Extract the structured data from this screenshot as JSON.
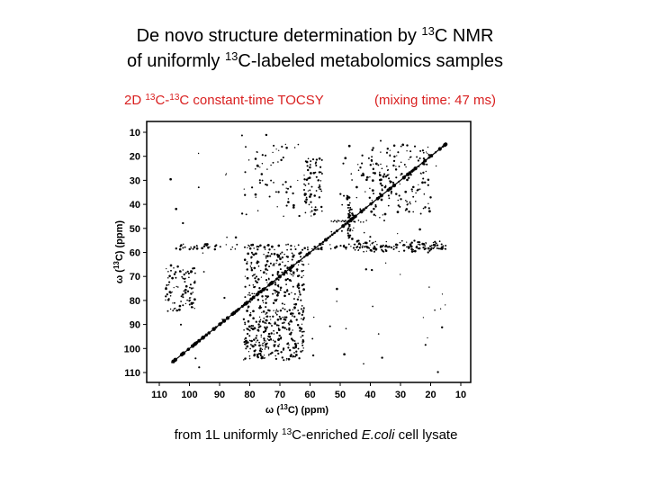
{
  "title": {
    "line1": [
      "De novo structure determination by ",
      "13",
      "C NMR"
    ],
    "line2": [
      "of uniformly ",
      "13",
      "C-labeled metabolomics samples"
    ]
  },
  "subtitle": {
    "experiment": [
      "2D ",
      "13",
      "C-",
      "13",
      "C constant-time TOCSY"
    ],
    "mixing": "(mixing time: 47 ms)"
  },
  "spectrum": {
    "x_ticks": [
      110,
      100,
      90,
      80,
      70,
      60,
      50,
      40,
      30,
      20,
      10
    ],
    "y_ticks": [
      10,
      20,
      30,
      40,
      50,
      60,
      70,
      80,
      90,
      100,
      110
    ],
    "x_label": [
      "ω (",
      "13",
      "C)  (ppm)"
    ],
    "y_label": [
      "ω (",
      "13",
      "C)  (ppm)"
    ]
  },
  "caption": [
    "from 1L uniformly ",
    "13",
    "C-enriched ",
    "E.coli",
    " cell lysate"
  ]
}
